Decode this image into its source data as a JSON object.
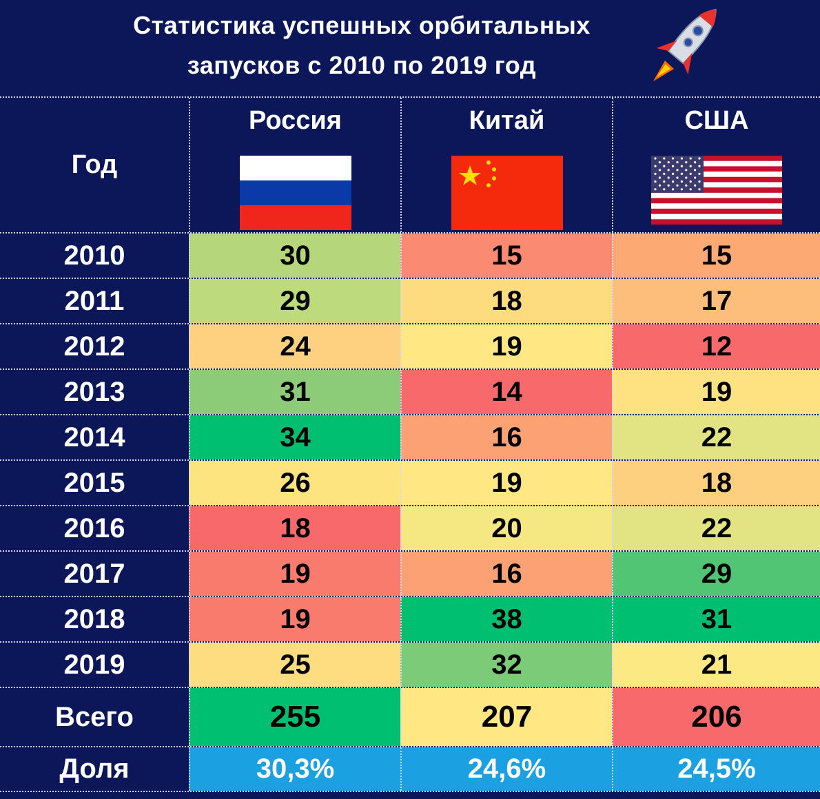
{
  "title_line1": "Статистика успешных орбитальных",
  "title_line2": "запусков с 2010 по 2019 год",
  "chart_data": {
    "type": "table",
    "columns": [
      "Год",
      "Россия",
      "Китай",
      "США"
    ],
    "rows": [
      {
        "year": "2010",
        "values": [
          30,
          15,
          15
        ],
        "colors": [
          "#b5d67a",
          "#fa8a71",
          "#fca974"
        ]
      },
      {
        "year": "2011",
        "values": [
          29,
          18,
          17
        ],
        "colors": [
          "#bddb7c",
          "#fddb7f",
          "#fdbd7b"
        ]
      },
      {
        "year": "2012",
        "values": [
          24,
          19,
          12
        ],
        "colors": [
          "#fdd17f",
          "#ffe783",
          "#f8696b"
        ]
      },
      {
        "year": "2013",
        "values": [
          31,
          14,
          19
        ],
        "colors": [
          "#8ccb78",
          "#f8696b",
          "#fee180"
        ]
      },
      {
        "year": "2014",
        "values": [
          34,
          16,
          22
        ],
        "colors": [
          "#00bf70",
          "#fba173",
          "#e2e383"
        ]
      },
      {
        "year": "2015",
        "values": [
          26,
          19,
          18
        ],
        "colors": [
          "#fde47f",
          "#ffe783",
          "#fcd07f"
        ]
      },
      {
        "year": "2016",
        "values": [
          18,
          20,
          22
        ],
        "colors": [
          "#f8696b",
          "#f5e883",
          "#e2e383"
        ]
      },
      {
        "year": "2017",
        "values": [
          19,
          16,
          29
        ],
        "colors": [
          "#f97b6e",
          "#fba173",
          "#52c574"
        ]
      },
      {
        "year": "2018",
        "values": [
          19,
          38,
          31
        ],
        "colors": [
          "#f97b6e",
          "#00bf70",
          "#00bf70"
        ]
      },
      {
        "year": "2019",
        "values": [
          25,
          32,
          21
        ],
        "colors": [
          "#fedc80",
          "#7ccb78",
          "#fde983"
        ]
      }
    ],
    "total": {
      "label": "Всего",
      "values": [
        255,
        207,
        206
      ],
      "colors": [
        "#00bf70",
        "#ffe783",
        "#f8696b"
      ]
    },
    "share": {
      "label": "Доля",
      "values": [
        "30,3%",
        "24,6%",
        "24,5%"
      ],
      "color": "#1ba1e2"
    }
  },
  "colors": {
    "background": "#0b1758"
  }
}
